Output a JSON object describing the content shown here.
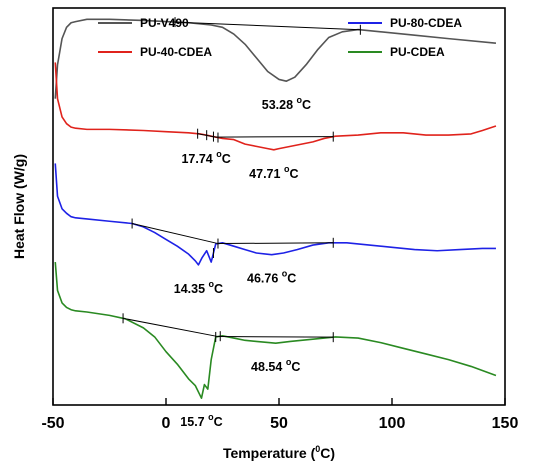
{
  "chart_data": {
    "type": "line",
    "xlabel_main": "Temperature (",
    "xlabel_sup": "0",
    "xlabel_end": "C)",
    "ylabel": "Heat Flow (W/g)",
    "xlim": [
      -50,
      150
    ],
    "x_ticks": [
      -50,
      0,
      50,
      100,
      150
    ],
    "x_tick_labels": [
      "-50",
      "0",
      "50",
      "100",
      "150"
    ],
    "y_ticks_shown": false,
    "grid": false,
    "legend_placement": "top",
    "legend": [
      {
        "name": "PU-V490",
        "color": "#555555"
      },
      {
        "name": "PU-80-CDEA",
        "color": "#1e22e6"
      },
      {
        "name": "PU-40-CDEA",
        "color": "#e0231c"
      },
      {
        "name": "PU-CDEA",
        "color": "#2a8a22"
      }
    ],
    "series": [
      {
        "name": "PU-V490",
        "color": "#555555",
        "x": [
          -49,
          -48,
          -46,
          -44,
          -42,
          -40,
          -35,
          -25,
          -10,
          0,
          10,
          20,
          25,
          30,
          35,
          40,
          45,
          50,
          53.28,
          57,
          62,
          67,
          72,
          78,
          85,
          95,
          110,
          125,
          146
        ],
        "y": [
          0.0,
          3.0,
          5.3,
          6.3,
          6.7,
          6.8,
          7.0,
          7.0,
          6.9,
          6.8,
          6.7,
          6.5,
          6.3,
          5.7,
          4.8,
          3.6,
          2.4,
          1.7,
          1.55,
          1.9,
          3.0,
          4.3,
          5.4,
          5.9,
          6.1,
          5.9,
          5.6,
          5.3,
          4.9
        ]
      },
      {
        "name": "PU-40-CDEA",
        "color": "#e0231c",
        "x": [
          -49,
          -48,
          -46,
          -44,
          -42,
          -40,
          -35,
          -25,
          -10,
          0,
          10,
          15,
          17.74,
          20,
          25,
          30,
          35,
          40,
          45,
          47.71,
          50,
          55,
          60,
          65,
          70,
          75,
          85,
          95,
          105,
          115,
          125,
          135,
          140,
          146
        ],
        "y": [
          3.2,
          0.0,
          -1.6,
          -2.2,
          -2.5,
          -2.6,
          -2.7,
          -2.7,
          -2.8,
          -2.9,
          -3.0,
          -3.1,
          -3.2,
          -3.3,
          -3.5,
          -3.6,
          -4.0,
          -4.2,
          -4.4,
          -4.5,
          -4.4,
          -4.2,
          -4.0,
          -3.8,
          -3.5,
          -3.3,
          -3.2,
          -3.0,
          -3.0,
          -3.2,
          -3.2,
          -3.1,
          -2.8,
          -2.4
        ]
      },
      {
        "name": "PU-80-CDEA",
        "color": "#1e22e6",
        "x": [
          -49,
          -48,
          -46,
          -44,
          -42,
          -40,
          -35,
          -25,
          -15,
          -10,
          -5,
          0,
          5,
          10,
          13,
          14.35,
          16,
          18,
          20,
          22,
          25,
          30,
          35,
          40,
          46.76,
          52,
          58,
          65,
          72,
          80,
          90,
          100,
          110,
          120,
          130,
          140,
          146
        ],
        "y": [
          -5.7,
          -8.6,
          -9.7,
          -10.1,
          -10.4,
          -10.5,
          -10.6,
          -10.8,
          -11.0,
          -11.3,
          -11.8,
          -12.4,
          -13.0,
          -13.7,
          -14.3,
          -14.65,
          -14.0,
          -13.4,
          -14.4,
          -12.8,
          -12.7,
          -13.0,
          -13.3,
          -13.6,
          -13.75,
          -13.6,
          -13.3,
          -12.9,
          -12.7,
          -12.7,
          -12.9,
          -13.1,
          -13.3,
          -13.4,
          -13.3,
          -13.2,
          -13.2
        ]
      },
      {
        "name": "PU-CDEA",
        "color": "#2a8a22",
        "x": [
          -49,
          -48,
          -46,
          -44,
          -42,
          -40,
          -35,
          -25,
          -18,
          -10,
          -5,
          0,
          5,
          10,
          13,
          15.7,
          17,
          18.5,
          20,
          22,
          25,
          30,
          35,
          40,
          48.54,
          55,
          65,
          75,
          85,
          95,
          105,
          115,
          125,
          135,
          146
        ],
        "y": [
          -14.4,
          -16.9,
          -18.0,
          -18.4,
          -18.6,
          -18.7,
          -18.8,
          -19.1,
          -19.4,
          -20.2,
          -21.0,
          -22.3,
          -23.4,
          -24.7,
          -25.3,
          -26.4,
          -25.2,
          -25.6,
          -23.0,
          -21.0,
          -20.9,
          -21.1,
          -21.3,
          -21.4,
          -21.55,
          -21.4,
          -21.2,
          -21.0,
          -21.1,
          -21.5,
          -22.0,
          -22.5,
          -23.0,
          -23.6,
          -24.4
        ]
      }
    ],
    "baselines": [
      {
        "series": "PU-V490",
        "x": [
          4,
          86
        ]
      },
      {
        "series": "PU-40-CDEA",
        "x": [
          14,
          22,
          74
        ]
      },
      {
        "series": "PU-80-CDEA",
        "x": [
          -15,
          23,
          74
        ]
      },
      {
        "series": "PU-CDEA",
        "x": [
          -19,
          23,
          74
        ]
      }
    ],
    "tick_marks": [
      {
        "series": "PU-V490",
        "x": [
          4,
          86
        ]
      },
      {
        "series": "PU-40-CDEA",
        "x": [
          14,
          18,
          21,
          23,
          74
        ]
      },
      {
        "series": "PU-80-CDEA",
        "x": [
          -15,
          21,
          23,
          74
        ]
      },
      {
        "series": "PU-CDEA",
        "x": [
          -19,
          22,
          24,
          74
        ]
      }
    ],
    "peak_annotations": [
      {
        "value": "53.28",
        "sup": "o",
        "unit": "C",
        "series": "PU-V490",
        "x": 53.28
      },
      {
        "value": "17.74",
        "sup": "o",
        "unit": "C",
        "series": "PU-40-CDEA",
        "x": 17.74
      },
      {
        "value": "47.71",
        "sup": "o",
        "unit": "C",
        "series": "PU-40-CDEA",
        "x": 47.71
      },
      {
        "value": "14.35",
        "sup": "o",
        "unit": "C",
        "series": "PU-80-CDEA",
        "x": 14.35
      },
      {
        "value": "46.76",
        "sup": "o",
        "unit": "C",
        "series": "PU-80-CDEA",
        "x": 46.76
      },
      {
        "value": "15.7",
        "sup": "o",
        "unit": "C",
        "series": "PU-CDEA",
        "x": 15.7
      },
      {
        "value": "48.54",
        "sup": "o",
        "unit": "C",
        "series": "PU-CDEA",
        "x": 48.54
      }
    ]
  }
}
